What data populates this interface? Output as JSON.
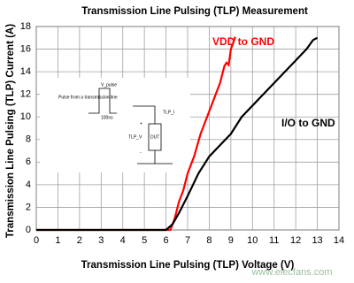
{
  "chart_data": {
    "type": "line",
    "title": "Transmission Line Pulsing (TLP) Measurement",
    "x_label": "Transmission Line Pulsing (TLP) Voltage (V)",
    "y_label": "Transmission Line Pulsing (TLP) Current (A)",
    "xlim": [
      0,
      14
    ],
    "xticks": [
      0,
      1,
      2,
      3,
      4,
      5,
      6,
      7,
      8,
      9,
      10,
      11,
      12,
      13,
      14
    ],
    "ylim": [
      0,
      18
    ],
    "yticks": [
      0,
      2,
      4,
      6,
      8,
      10,
      12,
      14,
      16,
      18
    ],
    "grid": true,
    "series": [
      {
        "name": "VDD to GND",
        "color": "#ff0000",
        "x": [
          0,
          6.2,
          6.4,
          6.6,
          6.8,
          7.0,
          7.3,
          7.6,
          7.9,
          8.2,
          8.5,
          8.7,
          8.8,
          8.9,
          9.0,
          9.1,
          9.2
        ],
        "values": [
          0,
          0,
          1,
          2.5,
          3.5,
          5,
          6.5,
          8.5,
          10,
          11.5,
          13,
          14.5,
          14.8,
          14.6,
          16,
          16.5,
          17.1
        ]
      },
      {
        "name": "I/O to GND",
        "color": "#000000",
        "x": [
          0,
          6.0,
          6.3,
          6.6,
          7.0,
          7.5,
          8.0,
          8.5,
          9.0,
          9.5,
          10.0,
          10.5,
          11.0,
          11.5,
          12.0,
          12.5,
          12.8,
          13.0
        ],
        "values": [
          0,
          0,
          0.5,
          1.5,
          3,
          5,
          6.5,
          7.5,
          8.5,
          10,
          11,
          12,
          13,
          14,
          15,
          16,
          16.8,
          17
        ]
      }
    ],
    "inset": {
      "v_pulse": "V_pulse",
      "source": "Pulse from a transmission line",
      "width": "100ns",
      "tlp_i": "TLP_I",
      "tlp_v": "TLP_V",
      "dut": "DUT",
      "plus": "+",
      "minus": "-"
    },
    "watermark": "www.elecfans.com"
  }
}
